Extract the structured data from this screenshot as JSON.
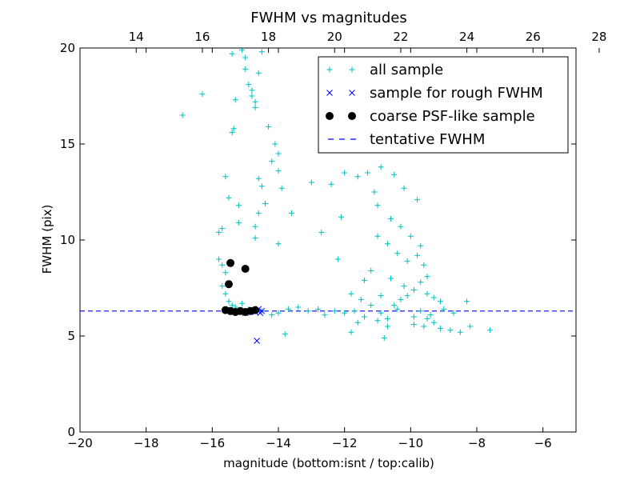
{
  "chart_data": {
    "type": "scatter",
    "title": "FWHM vs magnitudes",
    "xlabel": "magnitude (bottom:isnt / top:calib)",
    "ylabel": "FWHM (pix)",
    "xlim": [
      -20,
      -5
    ],
    "ylim": [
      0,
      20
    ],
    "x_ticks": [
      -20,
      -18,
      -16,
      -14,
      -12,
      -10,
      -8,
      -6
    ],
    "x_tick_labels": [
      "−20",
      "−18",
      "−16",
      "−14",
      "−12",
      "−10",
      "−8",
      "−6"
    ],
    "y_ticks": [
      0,
      5,
      10,
      15,
      20
    ],
    "y_tick_labels": [
      "0",
      "5",
      "10",
      "15",
      "20"
    ],
    "top_axis": {
      "ticks": [
        14,
        16,
        18,
        20,
        22,
        24,
        26,
        28
      ],
      "tick_labels": [
        "14",
        "16",
        "18",
        "20",
        "22",
        "24",
        "26",
        "28"
      ],
      "offset": 32.3
    },
    "grid": false,
    "legend_position": "top-right",
    "tentative_fwhm": 6.3,
    "series": [
      {
        "name": "all sample",
        "marker": "plus",
        "color": "#00bfbf",
        "points": [
          [
            -16.9,
            16.5
          ],
          [
            -16.3,
            17.6
          ],
          [
            -15.8,
            10.4
          ],
          [
            -15.7,
            10.6
          ],
          [
            -15.6,
            13.3
          ],
          [
            -15.5,
            12.2
          ],
          [
            -15.4,
            19.7
          ],
          [
            -15.3,
            17.3
          ],
          [
            -15.35,
            15.8
          ],
          [
            -15.4,
            15.6
          ],
          [
            -15.2,
            11.8
          ],
          [
            -15.1,
            19.9
          ],
          [
            -15.0,
            19.5
          ],
          [
            -15.0,
            18.9
          ],
          [
            -14.9,
            18.1
          ],
          [
            -14.8,
            17.8
          ],
          [
            -14.8,
            17.5
          ],
          [
            -14.7,
            17.2
          ],
          [
            -14.6,
            18.7
          ],
          [
            -14.5,
            19.8
          ],
          [
            -14.7,
            16.9
          ],
          [
            -14.6,
            13.2
          ],
          [
            -14.5,
            12.8
          ],
          [
            -14.6,
            11.4
          ],
          [
            -14.7,
            10.7
          ],
          [
            -14.7,
            10.1
          ],
          [
            -14.4,
            11.9
          ],
          [
            -14.3,
            15.9
          ],
          [
            -14.1,
            15.0
          ],
          [
            -14.0,
            14.5
          ],
          [
            -14.2,
            14.1
          ],
          [
            -14.0,
            13.6
          ],
          [
            -13.9,
            12.7
          ],
          [
            -13.6,
            11.4
          ],
          [
            -14.0,
            9.8
          ],
          [
            -15.7,
            8.7
          ],
          [
            -15.6,
            8.3
          ],
          [
            -15.7,
            7.6
          ],
          [
            -15.6,
            7.2
          ],
          [
            -15.5,
            6.8
          ],
          [
            -15.2,
            10.9
          ],
          [
            -15.8,
            9.0
          ],
          [
            -15.4,
            6.6
          ],
          [
            -15.3,
            6.5
          ],
          [
            -15.1,
            6.7
          ],
          [
            -14.9,
            6.4
          ],
          [
            -14.5,
            6.3
          ],
          [
            -14.2,
            6.1
          ],
          [
            -14.0,
            6.2
          ],
          [
            -13.7,
            6.4
          ],
          [
            -13.4,
            6.5
          ],
          [
            -13.1,
            6.3
          ],
          [
            -12.8,
            6.4
          ],
          [
            -12.6,
            6.1
          ],
          [
            -12.3,
            6.3
          ],
          [
            -12.0,
            6.2
          ],
          [
            -11.7,
            6.3
          ],
          [
            -11.4,
            6.0
          ],
          [
            -11.2,
            6.6
          ],
          [
            -10.9,
            6.2
          ],
          [
            -10.7,
            5.9
          ],
          [
            -10.5,
            6.6
          ],
          [
            -10.3,
            6.9
          ],
          [
            -10.1,
            7.1
          ],
          [
            -9.9,
            6.0
          ],
          [
            -9.7,
            6.3
          ],
          [
            -9.5,
            5.9
          ],
          [
            -9.3,
            5.7
          ],
          [
            -9.1,
            5.4
          ],
          [
            -8.8,
            5.3
          ],
          [
            -8.5,
            5.2
          ],
          [
            -8.2,
            5.5
          ],
          [
            -7.6,
            5.3
          ],
          [
            -8.3,
            6.8
          ],
          [
            -8.7,
            6.2
          ],
          [
            -9.0,
            6.4
          ],
          [
            -13.8,
            5.1
          ],
          [
            -11.8,
            5.2
          ],
          [
            -10.8,
            4.9
          ],
          [
            -13.0,
            13.0
          ],
          [
            -12.4,
            12.9
          ],
          [
            -12.0,
            13.5
          ],
          [
            -11.6,
            13.3
          ],
          [
            -11.3,
            13.5
          ],
          [
            -10.9,
            13.8
          ],
          [
            -10.5,
            13.4
          ],
          [
            -10.2,
            12.7
          ],
          [
            -9.8,
            12.1
          ],
          [
            -11.1,
            12.5
          ],
          [
            -11.0,
            11.8
          ],
          [
            -10.6,
            11.1
          ],
          [
            -10.3,
            10.7
          ],
          [
            -10.0,
            10.2
          ],
          [
            -9.7,
            9.7
          ],
          [
            -9.8,
            9.2
          ],
          [
            -9.6,
            8.7
          ],
          [
            -9.5,
            8.1
          ],
          [
            -10.1,
            8.9
          ],
          [
            -10.4,
            9.3
          ],
          [
            -10.7,
            9.8
          ],
          [
            -11.0,
            10.2
          ],
          [
            -11.2,
            8.4
          ],
          [
            -11.4,
            7.9
          ],
          [
            -11.8,
            7.2
          ],
          [
            -12.2,
            9.0
          ],
          [
            -12.7,
            10.4
          ],
          [
            -12.1,
            11.2
          ],
          [
            -10.6,
            8.0
          ],
          [
            -10.2,
            7.6
          ],
          [
            -9.9,
            7.4
          ],
          [
            -9.7,
            7.8
          ],
          [
            -9.5,
            7.2
          ],
          [
            -9.3,
            7.0
          ],
          [
            -9.1,
            6.8
          ],
          [
            -10.9,
            7.1
          ],
          [
            -11.5,
            6.9
          ],
          [
            -10.4,
            6.4
          ],
          [
            -9.9,
            5.6
          ],
          [
            -9.6,
            5.5
          ],
          [
            -9.4,
            6.1
          ],
          [
            -11.0,
            5.8
          ],
          [
            -11.6,
            5.7
          ],
          [
            -10.7,
            5.5
          ]
        ]
      },
      {
        "name": "sample for rough FWHM",
        "marker": "x",
        "color": "#0000ff",
        "points": [
          [
            -15.55,
            6.3
          ],
          [
            -15.4,
            6.25
          ],
          [
            -15.2,
            6.3
          ],
          [
            -15.0,
            6.2
          ],
          [
            -14.8,
            6.3
          ],
          [
            -14.7,
            6.25
          ],
          [
            -14.6,
            6.4
          ],
          [
            -14.55,
            6.2
          ],
          [
            -14.5,
            6.3
          ],
          [
            -14.65,
            4.75
          ]
        ]
      },
      {
        "name": "coarse PSF-like sample",
        "marker": "circle",
        "color": "#000000",
        "points": [
          [
            -15.45,
            8.8
          ],
          [
            -15.0,
            8.5
          ],
          [
            -15.5,
            7.7
          ],
          [
            -15.6,
            6.35
          ],
          [
            -15.45,
            6.3
          ],
          [
            -15.3,
            6.25
          ],
          [
            -15.15,
            6.3
          ],
          [
            -15.0,
            6.25
          ],
          [
            -14.85,
            6.3
          ],
          [
            -14.7,
            6.35
          ]
        ]
      },
      {
        "name": "tentative FWHM",
        "marker": "dashed-line",
        "color": "#0000ff"
      }
    ]
  }
}
